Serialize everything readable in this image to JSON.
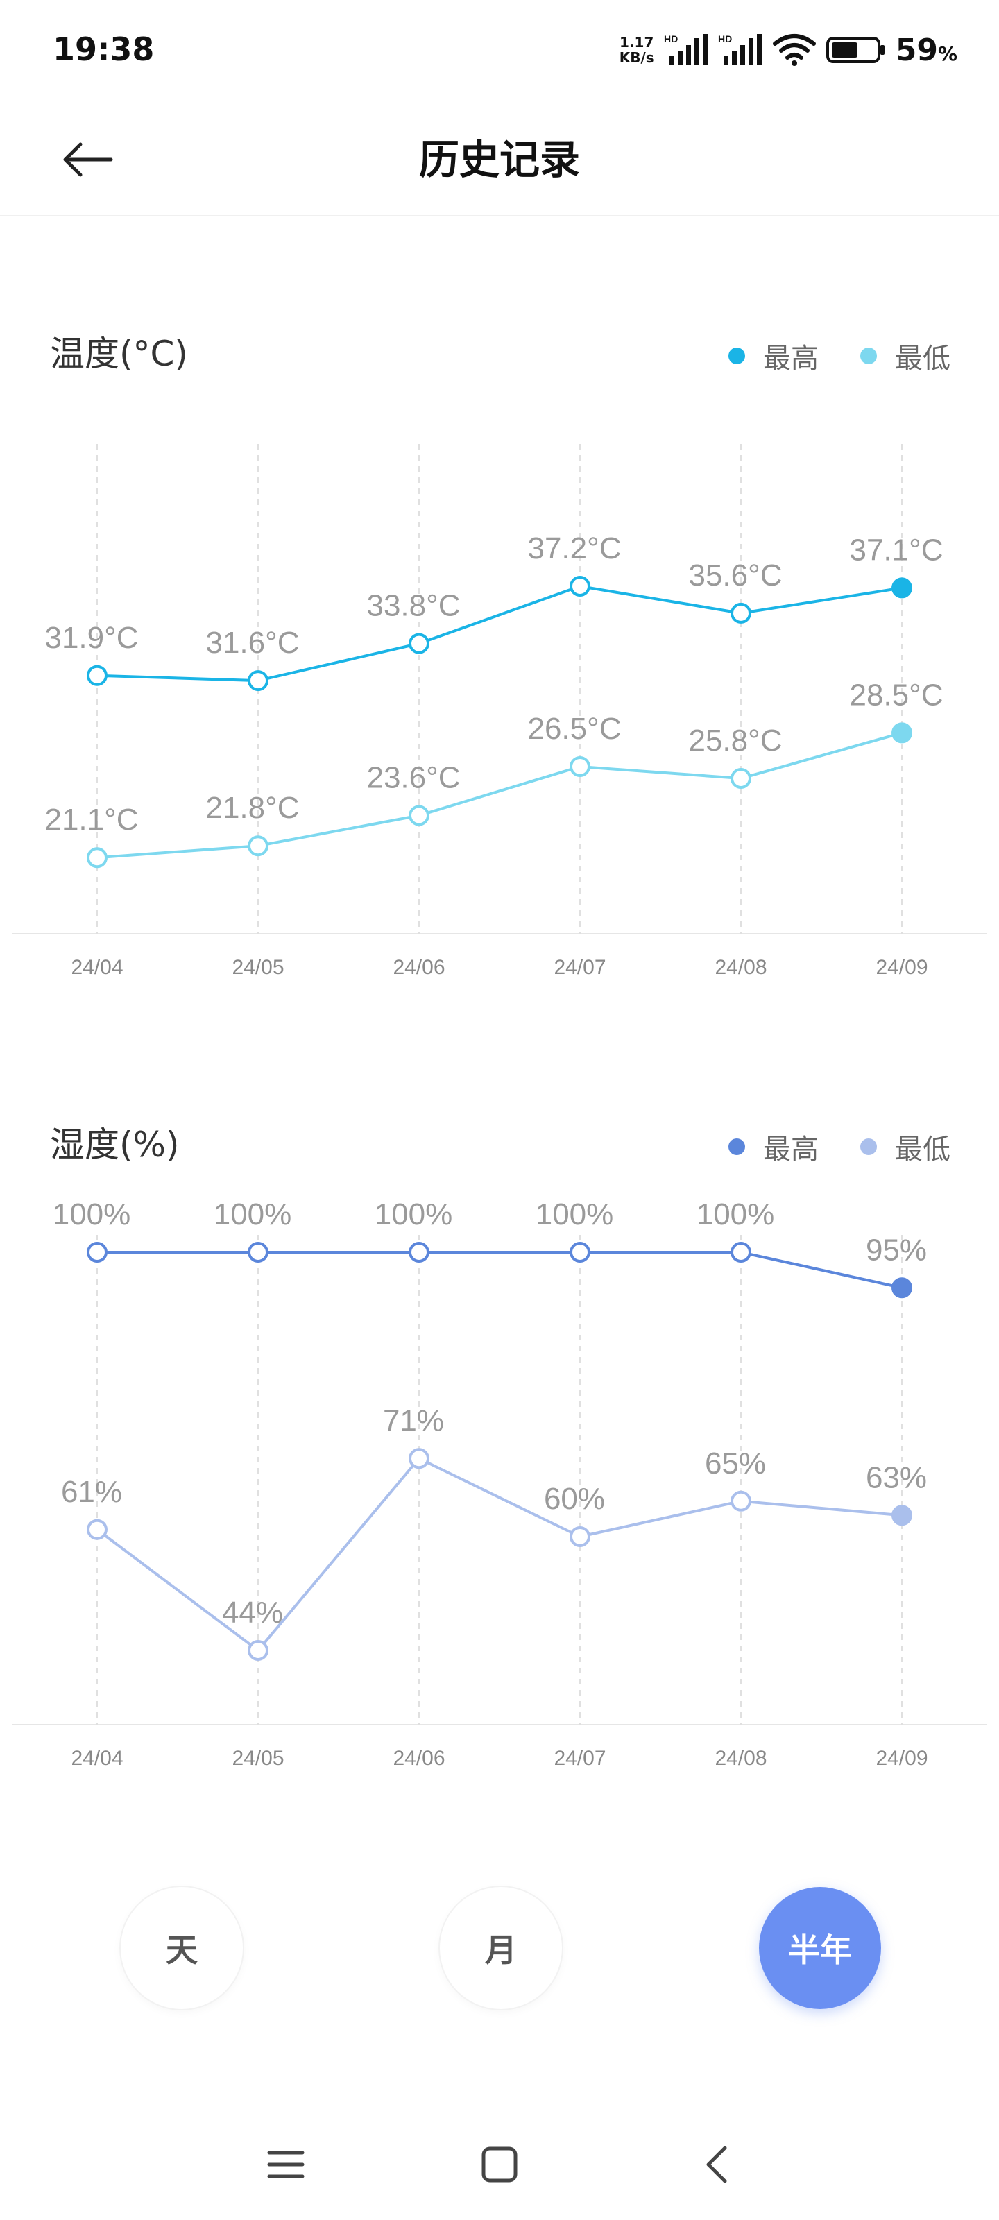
{
  "status_bar": {
    "time": "19:38",
    "net_speed_value": "1.17",
    "net_speed_unit": "KB/s",
    "signal_1_label": "HD",
    "signal_2_label": "HD",
    "battery_percent": "59",
    "battery_percent_sign": "%",
    "battery_level": 0.59,
    "icons": [
      "signal-hd-icon",
      "signal-hd-icon",
      "wifi-icon",
      "battery-icon"
    ]
  },
  "header": {
    "title": "历史记录",
    "back_icon": "arrow-left-icon"
  },
  "colors": {
    "temp_high": "#1ab4e6",
    "temp_low": "#7dd8ef",
    "hum_high": "#5b86db",
    "hum_low": "#aabfec",
    "active_button": "#6a8ff2",
    "value_label": "#999999",
    "axis_label": "#888888"
  },
  "temperature_section": {
    "title": "温度(°C)",
    "legend_high": "最高",
    "legend_low": "最低"
  },
  "humidity_section": {
    "title": "湿度(%)",
    "legend_high": "最高",
    "legend_low": "最低"
  },
  "range_buttons": {
    "day": "天",
    "month": "月",
    "half_year": "半年",
    "selected": "half_year"
  },
  "nav_bar": {
    "icons": [
      "menu-icon",
      "home-square-icon",
      "back-chevron-icon"
    ]
  },
  "chart_data": [
    {
      "type": "line",
      "title": "温度(°C)",
      "categories": [
        "24/04",
        "24/05",
        "24/06",
        "24/07",
        "24/08",
        "24/09"
      ],
      "series": [
        {
          "name": "最高",
          "values": [
            31.9,
            31.6,
            33.8,
            37.2,
            35.6,
            37.1
          ],
          "labels": [
            "31.9°C",
            "31.6°C",
            "33.8°C",
            "37.2°C",
            "35.6°C",
            "37.1°C"
          ]
        },
        {
          "name": "最低",
          "values": [
            21.1,
            21.8,
            23.6,
            26.5,
            25.8,
            28.5
          ],
          "labels": [
            "21.1°C",
            "21.8°C",
            "23.6°C",
            "26.5°C",
            "25.8°C",
            "28.5°C"
          ]
        }
      ],
      "grid": "vertical-dashed",
      "legend_position": "top-right"
    },
    {
      "type": "line",
      "title": "湿度(%)",
      "categories": [
        "24/04",
        "24/05",
        "24/06",
        "24/07",
        "24/08",
        "24/09"
      ],
      "series": [
        {
          "name": "最高",
          "values": [
            100,
            100,
            100,
            100,
            100,
            95
          ],
          "labels": [
            "100%",
            "100%",
            "100%",
            "100%",
            "100%",
            "95%"
          ]
        },
        {
          "name": "最低",
          "values": [
            61,
            44,
            71,
            60,
            65,
            63
          ],
          "labels": [
            "61%",
            "44%",
            "71%",
            "60%",
            "65%",
            "63%"
          ]
        }
      ],
      "grid": "vertical-dashed",
      "legend_position": "top-right"
    }
  ]
}
